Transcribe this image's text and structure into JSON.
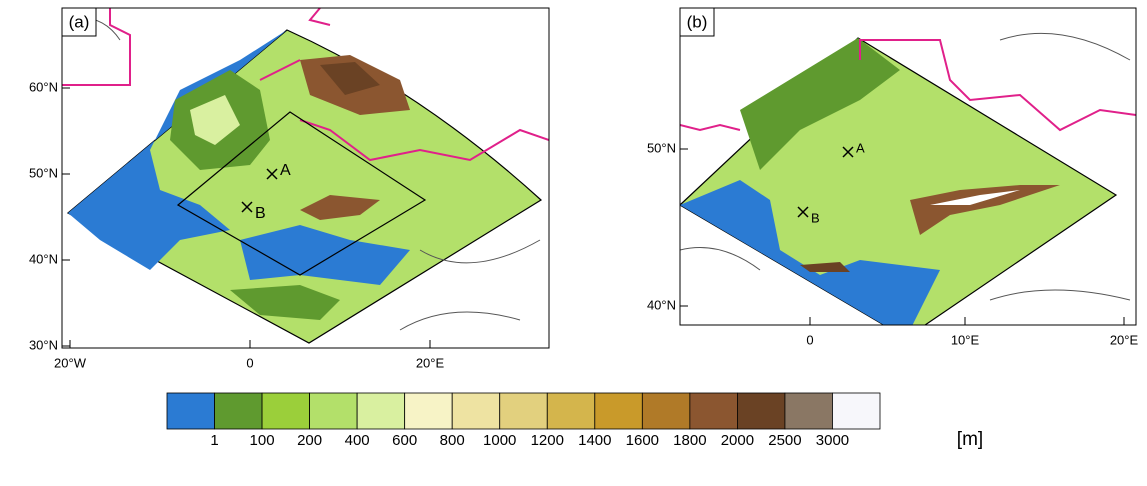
{
  "panels": [
    {
      "label": "(a)",
      "x_ticks": [
        "20°W",
        "0",
        "20°E"
      ],
      "y_ticks": [
        "60°N",
        "50°N",
        "40°N",
        "30°N"
      ],
      "points": [
        "A",
        "B"
      ]
    },
    {
      "label": "(b)",
      "x_ticks": [
        "0",
        "10°E",
        "20°E"
      ],
      "y_ticks": [
        "50°N",
        "40°N"
      ],
      "points": [
        "A",
        "B"
      ]
    }
  ],
  "colorbar": {
    "colors": [
      "#2b7bd3",
      "#5f9a2f",
      "#9bcf3a",
      "#b3e06a",
      "#d9f0a0",
      "#f7f3c6",
      "#eee3a2",
      "#e2d07e",
      "#d4b54c",
      "#c99a2a",
      "#b07a28",
      "#8b5630",
      "#6a4224",
      "#8a7764",
      "#f7f7fb"
    ],
    "labels": [
      "1",
      "100",
      "200",
      "400",
      "600",
      "800",
      "1000",
      "1200",
      "1400",
      "1600",
      "1800",
      "2000",
      "2500",
      "3000"
    ],
    "unit": "[m]"
  }
}
